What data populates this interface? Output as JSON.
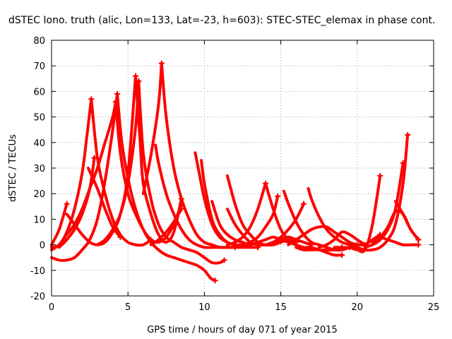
{
  "chart_data": {
    "type": "line",
    "title": "dSTEC Iono. truth (alic, Lon=133, Lat=-23, h=603): STEC-STEC_elemax in phase cont.",
    "xlabel": "GPS time / hours of day 071 of year 2015",
    "ylabel": "dSTEC  / TECUs",
    "xlim": [
      0,
      25
    ],
    "ylim": [
      -20,
      80
    ],
    "xticks": [
      0,
      5,
      10,
      15,
      20,
      25
    ],
    "yticks": [
      -20,
      -10,
      0,
      10,
      20,
      30,
      40,
      50,
      60,
      70,
      80
    ],
    "grid": true,
    "color": "#ff0000",
    "marker": "+",
    "series": [
      {
        "x": [
          0.0,
          0.5,
          1.0
        ],
        "y": [
          0,
          6,
          16
        ]
      },
      {
        "x": [
          0.0,
          0.5,
          1.0,
          1.5,
          2.0,
          2.3,
          2.6
        ],
        "y": [
          -1,
          0,
          5,
          14,
          28,
          42,
          57
        ]
      },
      {
        "x": [
          0.0,
          0.5,
          1.0,
          1.5,
          2.0,
          2.5,
          3.0,
          3.5,
          4.0,
          4.3
        ],
        "y": [
          -5,
          -6,
          -6,
          -5,
          -2,
          2,
          10,
          25,
          45,
          59
        ]
      },
      {
        "x": [
          0.0,
          0.5,
          1.0,
          1.5,
          2.0,
          2.5,
          3.0,
          3.5,
          4.0,
          4.2
        ],
        "y": [
          -2,
          0,
          4,
          8,
          14,
          22,
          30,
          40,
          50,
          56
        ]
      },
      {
        "x": [
          0.5,
          1.0,
          1.5,
          2.0,
          2.5,
          2.8
        ],
        "y": [
          -1,
          2,
          6,
          12,
          22,
          34
        ]
      },
      {
        "x": [
          1.0,
          1.5,
          2.0,
          2.5,
          3.0,
          3.5,
          4.0,
          4.5,
          5.0,
          5.5
        ],
        "y": [
          12,
          8,
          4,
          1,
          0,
          1,
          5,
          12,
          28,
          66
        ]
      },
      {
        "x": [
          2.4,
          3.0,
          3.5,
          4.0,
          4.5
        ],
        "y": [
          30,
          22,
          14,
          7,
          3
        ]
      },
      {
        "x": [
          2.6,
          3.0,
          3.5,
          4.0,
          4.5,
          5.0,
          5.5,
          6.0,
          6.5
        ],
        "y": [
          57,
          34,
          20,
          10,
          4,
          1,
          0,
          0,
          2
        ]
      },
      {
        "x": [
          3.0,
          3.5,
          4.0,
          4.5,
          5.0,
          5.5,
          5.7
        ],
        "y": [
          0,
          2,
          6,
          12,
          24,
          46,
          64
        ]
      },
      {
        "x": [
          4.2,
          4.5,
          5.0,
          5.5,
          6.0,
          6.5,
          7.0,
          7.5,
          8.0,
          8.5
        ],
        "y": [
          56,
          36,
          20,
          12,
          6,
          2,
          1,
          3,
          8,
          16
        ]
      },
      {
        "x": [
          4.3,
          4.6,
          5.0,
          5.5,
          6.0,
          6.5,
          7.0,
          7.5,
          8.0,
          8.5,
          9.0,
          9.5,
          10.0,
          10.4,
          10.7
        ],
        "y": [
          59,
          40,
          26,
          14,
          6,
          1,
          -2,
          -4,
          -5,
          -6,
          -7,
          -8,
          -10,
          -13,
          -14
        ]
      },
      {
        "x": [
          5.5,
          5.8,
          6.0,
          6.5,
          7.0,
          7.5,
          8.0,
          8.5
        ],
        "y": [
          66,
          40,
          24,
          12,
          4,
          1,
          5,
          18
        ]
      },
      {
        "x": [
          5.7,
          6.0,
          6.5,
          7.0,
          7.5,
          8.0,
          8.5,
          9.0,
          9.5,
          10.0,
          10.5,
          11.0,
          11.3
        ],
        "y": [
          64,
          36,
          18,
          8,
          3,
          1,
          -1,
          -2,
          -3,
          -5,
          -7,
          -7,
          -6
        ]
      },
      {
        "x": [
          6.0,
          6.5,
          7.0,
          7.2
        ],
        "y": [
          20,
          35,
          55,
          71
        ]
      },
      {
        "x": [
          7.2,
          7.5,
          8.0,
          8.5,
          9.0,
          9.5,
          10.0,
          10.5,
          11.0,
          11.5,
          12.0,
          12.5,
          13.0,
          13.5
        ],
        "y": [
          71,
          50,
          30,
          18,
          10,
          4,
          1,
          0,
          -1,
          -1,
          -1,
          -1,
          -1,
          -1
        ]
      },
      {
        "x": [
          6.8,
          7.0,
          7.5,
          8.0,
          8.5,
          9.0,
          9.5,
          10.0,
          10.5,
          11.0,
          11.5,
          12.0
        ],
        "y": [
          39,
          32,
          20,
          12,
          6,
          2,
          0,
          -1,
          -1,
          -1,
          -1,
          -1
        ]
      },
      {
        "x": [
          6.5,
          7.0,
          7.5,
          8.0,
          8.5
        ],
        "y": [
          0,
          2,
          5,
          9,
          14
        ]
      },
      {
        "x": [
          9.4,
          9.6,
          10.0,
          10.5,
          11.0,
          11.5,
          12.0,
          12.5
        ],
        "y": [
          36,
          30,
          18,
          8,
          3,
          1,
          0,
          0
        ]
      },
      {
        "x": [
          9.8,
          10.0,
          10.5,
          11.0,
          11.5,
          12.0,
          12.5,
          13.0
        ],
        "y": [
          33,
          24,
          10,
          4,
          1,
          0,
          0,
          0
        ]
      },
      {
        "x": [
          10.5,
          11.0,
          11.5,
          12.0,
          12.5,
          13.0,
          13.5,
          14.0,
          14.5,
          15.0,
          15.5,
          16.0
        ],
        "y": [
          17,
          8,
          4,
          2,
          1,
          0,
          1,
          2,
          3,
          2,
          1,
          0
        ]
      },
      {
        "x": [
          11.5,
          12.0,
          12.5,
          13.0,
          13.5,
          14.0,
          14.5,
          15.0,
          15.5,
          16.0
        ],
        "y": [
          27,
          16,
          8,
          4,
          1,
          0,
          0,
          1,
          2,
          1
        ]
      },
      {
        "x": [
          11.5,
          12.0,
          12.5,
          13.0,
          13.5,
          14.0,
          14.5,
          15.0,
          15.5,
          16.0,
          16.5,
          17.0
        ],
        "y": [
          14,
          8,
          4,
          1,
          0,
          0,
          1,
          2,
          3,
          2,
          1,
          0
        ]
      },
      {
        "x": [
          11.5,
          12.0,
          12.5,
          13.0,
          13.5,
          14.0
        ],
        "y": [
          0,
          1,
          3,
          7,
          14,
          24
        ]
      },
      {
        "x": [
          14.0,
          14.5,
          15.0,
          15.5,
          16.0,
          16.5,
          17.0,
          17.5,
          18.0,
          18.5,
          19.0
        ],
        "y": [
          24,
          14,
          6,
          2,
          0,
          -1,
          -1,
          -2,
          -2,
          -2,
          -1
        ]
      },
      {
        "x": [
          12.5,
          13.0,
          13.5,
          14.0,
          14.5,
          14.8
        ],
        "y": [
          0,
          1,
          3,
          7,
          12,
          19
        ]
      },
      {
        "x": [
          15.2,
          15.5,
          16.0,
          16.5,
          17.0,
          17.5,
          18.0,
          18.5,
          19.0,
          19.5
        ],
        "y": [
          21,
          16,
          9,
          4,
          1,
          0,
          -1,
          -2,
          -2,
          -1
        ]
      },
      {
        "x": [
          14.0,
          14.5,
          15.0,
          15.5,
          16.0,
          16.5
        ],
        "y": [
          0,
          1,
          3,
          6,
          10,
          16
        ]
      },
      {
        "x": [
          16.8,
          17.0,
          17.5,
          18.0,
          18.5,
          19.0,
          19.5,
          20.0
        ],
        "y": [
          22,
          18,
          11,
          6,
          3,
          1,
          0,
          -1
        ]
      },
      {
        "x": [
          15.5,
          16.0,
          16.5,
          17.0,
          17.5,
          18.0,
          18.5,
          19.0,
          19.5,
          20.0
        ],
        "y": [
          0,
          2,
          4,
          6,
          7,
          7,
          5,
          3,
          1,
          0
        ]
      },
      {
        "x": [
          16.0,
          16.5,
          17.0,
          17.5,
          18.0,
          18.5,
          19.0
        ],
        "y": [
          -1,
          -2,
          -2,
          -2,
          -3,
          -4,
          -4
        ]
      },
      {
        "x": [
          17.5,
          18.0,
          18.5,
          19.0,
          19.5,
          20.0,
          20.5
        ],
        "y": [
          -1,
          0,
          2,
          5,
          4,
          2,
          0
        ]
      },
      {
        "x": [
          18.5,
          19.0,
          19.5,
          20.0,
          20.5,
          21.0,
          21.5
        ],
        "y": [
          -1,
          -1,
          -1,
          0,
          0,
          2,
          4
        ]
      },
      {
        "x": [
          19.5,
          20.0,
          20.5,
          21.0,
          21.5
        ],
        "y": [
          -1,
          -2,
          -2,
          8,
          27
        ]
      },
      {
        "x": [
          20.0,
          20.5,
          21.0,
          21.5,
          22.0,
          22.5,
          23.0,
          23.3
        ],
        "y": [
          -1,
          -2,
          -2,
          -1,
          2,
          8,
          24,
          43
        ]
      },
      {
        "x": [
          20.5,
          21.0,
          21.5,
          22.0,
          22.5,
          23.0
        ],
        "y": [
          -1,
          0,
          2,
          6,
          14,
          32
        ]
      },
      {
        "x": [
          21.0,
          21.5,
          22.0,
          22.5,
          23.0,
          23.5,
          24.0
        ],
        "y": [
          1,
          3,
          7,
          13,
          12,
          6,
          2
        ]
      },
      {
        "x": [
          22.5,
          23.0,
          23.5,
          24.0
        ],
        "y": [
          17,
          12,
          6,
          2
        ]
      },
      {
        "x": [
          21.5,
          22.0,
          22.5,
          23.0,
          23.5,
          24.0
        ],
        "y": [
          3,
          2,
          1,
          0,
          0,
          0
        ]
      }
    ]
  }
}
